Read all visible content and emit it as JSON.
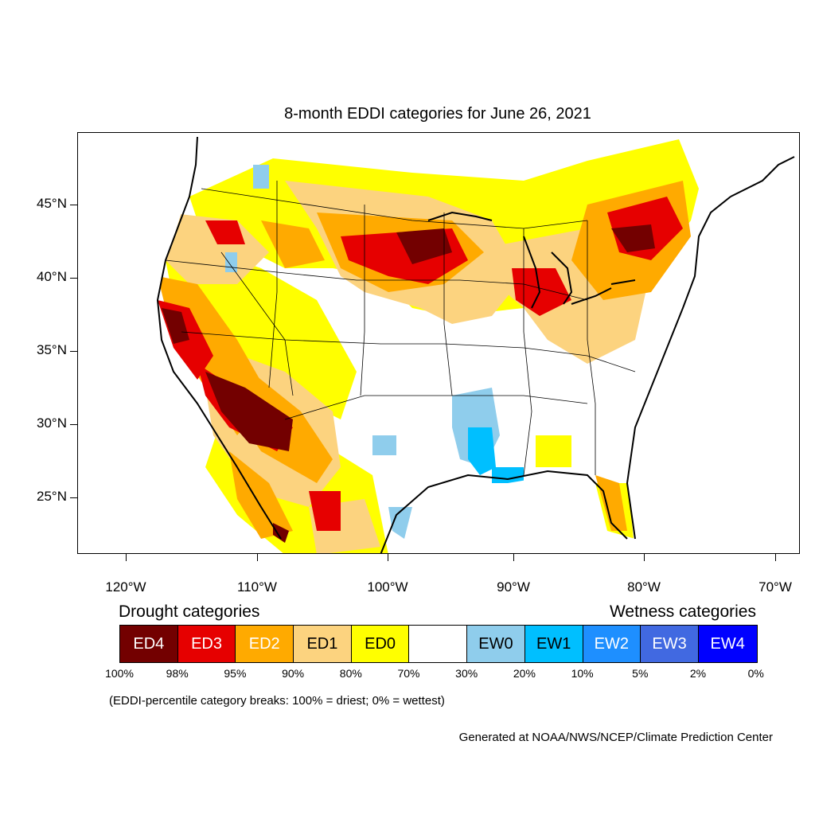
{
  "title": "8-month EDDI categories for June 26, 2021",
  "latitude_labels": [
    "45°N",
    "40°N",
    "35°N",
    "30°N",
    "25°N"
  ],
  "longitude_labels": [
    "120°W",
    "110°W",
    "100°W",
    "90°W",
    "80°W",
    "70°W"
  ],
  "legend": {
    "drought_heading": "Drought categories",
    "wetness_heading": "Wetness categories",
    "categories": [
      {
        "label": "ED4",
        "color": "#730000",
        "text_color": "#ffffff"
      },
      {
        "label": "ED3",
        "color": "#e60000",
        "text_color": "#ffffff"
      },
      {
        "label": "ED2",
        "color": "#ffaa00",
        "text_color": "#ffffff"
      },
      {
        "label": "ED1",
        "color": "#fcd37f",
        "text_color": "#000000"
      },
      {
        "label": "ED0",
        "color": "#ffff00",
        "text_color": "#000000"
      },
      {
        "label": "",
        "color": "#ffffff",
        "text_color": "#000000"
      },
      {
        "label": "EW0",
        "color": "#8fcdec",
        "text_color": "#000000"
      },
      {
        "label": "EW1",
        "color": "#00bfff",
        "text_color": "#000000"
      },
      {
        "label": "EW2",
        "color": "#1e8fff",
        "text_color": "#ffffff"
      },
      {
        "label": "EW3",
        "color": "#4169e1",
        "text_color": "#ffffff"
      },
      {
        "label": "EW4",
        "color": "#0000ff",
        "text_color": "#ffffff"
      }
    ],
    "breaks": [
      "100%",
      "98%",
      "95%",
      "90%",
      "80%",
      "70%",
      "30%",
      "20%",
      "10%",
      "5%",
      "2%",
      "0%"
    ]
  },
  "note": "(EDDI-percentile category breaks: 100% = driest; 0% = wettest)",
  "credit": "Generated at NOAA/NWS/NCEP/Climate Prediction Center"
}
